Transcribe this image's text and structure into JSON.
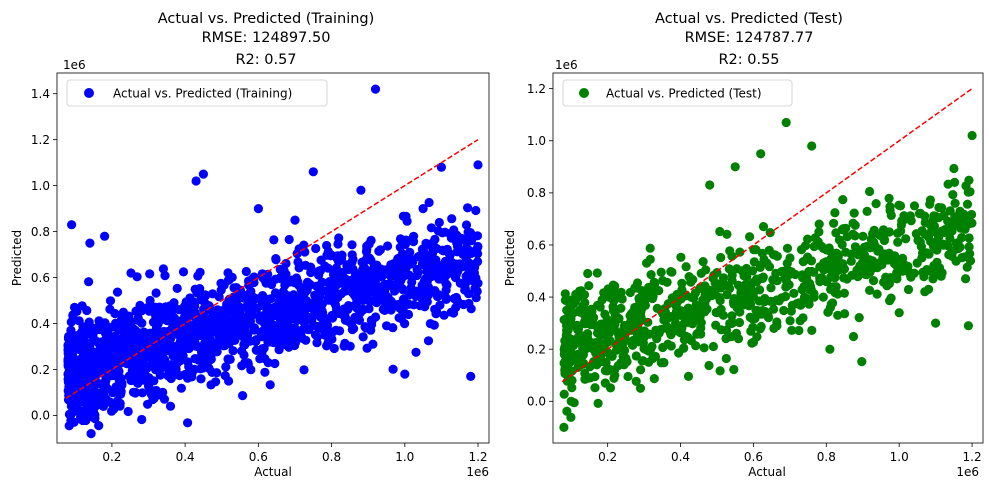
{
  "chart_data": [
    {
      "type": "scatter",
      "title_lines": [
        "Actual vs. Predicted (Training)",
        "RMSE: 124897.50",
        "R2: 0.57"
      ],
      "xlabel": "Actual",
      "ylabel": "Predicted",
      "x_offset_text": "1e6",
      "y_offset_text": "1e6",
      "xlim": [
        0.05,
        1.23
      ],
      "ylim": [
        -0.12,
        1.49
      ],
      "xticks": [
        0.2,
        0.4,
        0.6,
        0.8,
        1.0,
        1.2
      ],
      "xtick_labels": [
        "0.2",
        "0.4",
        "0.6",
        "0.8",
        "1.0",
        "1.2"
      ],
      "yticks": [
        0.0,
        0.2,
        0.4,
        0.6,
        0.8,
        1.0,
        1.2,
        1.4
      ],
      "ytick_labels": [
        "0.0",
        "0.2",
        "0.4",
        "0.6",
        "0.8",
        "1.0",
        "1.2",
        "1.4"
      ],
      "grid": false,
      "legend": "upper-left",
      "series": [
        {
          "name": "Actual vs. Predicted (Training)",
          "color": "#0000ff",
          "marker": "circle",
          "point_cloud": {
            "x_range": [
              0.08,
              1.2
            ],
            "trend_intercept": 0.16,
            "trend_slope": 0.44,
            "spread": 0.11,
            "count": 1600
          },
          "points": [
            {
              "x": 0.09,
              "y": 0.83
            },
            {
              "x": 0.92,
              "y": 1.42
            },
            {
              "x": 0.75,
              "y": 1.06
            },
            {
              "x": 0.43,
              "y": 1.02
            },
            {
              "x": 0.45,
              "y": 1.05
            },
            {
              "x": 0.18,
              "y": 0.78
            },
            {
              "x": 0.14,
              "y": 0.75
            },
            {
              "x": 1.2,
              "y": 1.09
            },
            {
              "x": 1.1,
              "y": 1.08
            },
            {
              "x": 0.88,
              "y": 0.98
            },
            {
              "x": 1.18,
              "y": 0.17
            },
            {
              "x": 0.36,
              "y": 0.04
            },
            {
              "x": 0.09,
              "y": -0.03
            },
            {
              "x": 1.05,
              "y": 0.9
            },
            {
              "x": 1.19,
              "y": 0.62
            },
            {
              "x": 1.0,
              "y": 0.18
            },
            {
              "x": 0.7,
              "y": 0.85
            },
            {
              "x": 0.6,
              "y": 0.9
            }
          ]
        },
        {
          "name": "",
          "color": "#ff0000",
          "style": "dashed-line",
          "line": [
            {
              "x": 0.075,
              "y": 0.075
            },
            {
              "x": 1.2,
              "y": 1.2
            }
          ]
        }
      ]
    },
    {
      "type": "scatter",
      "title_lines": [
        "Actual vs. Predicted (Test)",
        "RMSE: 124787.77",
        "R2: 0.55"
      ],
      "xlabel": "Actual",
      "ylabel": "Predicted",
      "x_offset_text": "1e6",
      "y_offset_text": "1e6",
      "xlim": [
        0.05,
        1.23
      ],
      "ylim": [
        -0.16,
        1.26
      ],
      "xticks": [
        0.2,
        0.4,
        0.6,
        0.8,
        1.0,
        1.2
      ],
      "xtick_labels": [
        "0.2",
        "0.4",
        "0.6",
        "0.8",
        "1.0",
        "1.2"
      ],
      "yticks": [
        0.0,
        0.2,
        0.4,
        0.6,
        0.8,
        1.0,
        1.2
      ],
      "ytick_labels": [
        "0.0",
        "0.2",
        "0.4",
        "0.6",
        "0.8",
        "1.0",
        "1.2"
      ],
      "grid": false,
      "legend": "upper-left",
      "series": [
        {
          "name": "Actual vs. Predicted (Test)",
          "color": "#008000",
          "marker": "circle",
          "point_cloud": {
            "x_range": [
              0.08,
              1.2
            ],
            "trend_intercept": 0.19,
            "trend_slope": 0.4,
            "spread": 0.1,
            "count": 900
          },
          "points": [
            {
              "x": 0.08,
              "y": -0.1
            },
            {
              "x": 0.69,
              "y": 1.07
            },
            {
              "x": 1.2,
              "y": 1.02
            },
            {
              "x": 0.62,
              "y": 0.95
            },
            {
              "x": 0.76,
              "y": 0.98
            },
            {
              "x": 0.29,
              "y": 0.05
            },
            {
              "x": 0.1,
              "y": 0.0
            },
            {
              "x": 0.81,
              "y": 0.2
            },
            {
              "x": 1.0,
              "y": 0.34
            },
            {
              "x": 1.19,
              "y": 0.29
            },
            {
              "x": 1.1,
              "y": 0.3
            },
            {
              "x": 0.48,
              "y": 0.83
            },
            {
              "x": 0.93,
              "y": 0.61
            },
            {
              "x": 0.55,
              "y": 0.9
            }
          ]
        },
        {
          "name": "",
          "color": "#ff0000",
          "style": "dashed-line",
          "line": [
            {
              "x": 0.075,
              "y": 0.075
            },
            {
              "x": 1.2,
              "y": 1.2
            }
          ]
        }
      ]
    }
  ]
}
